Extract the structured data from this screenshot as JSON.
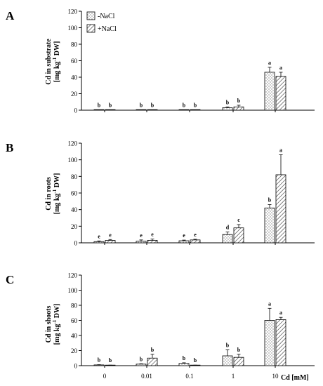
{
  "chart_data": [
    {
      "type": "bar",
      "panel_label": "A",
      "ylabel_line1": "Cd in substrate",
      "ylabel_line2_pre": "[mg kg",
      "ylabel_sup": "-1",
      "ylabel_line2_post": " DW]",
      "ylim": [
        0,
        120
      ],
      "yticks": [
        "0",
        "20",
        "40",
        "60",
        "80",
        "100",
        "120"
      ],
      "categories": [
        "0",
        "0.01",
        "0.1",
        "1",
        "10"
      ],
      "legend": [
        "-NaCl",
        "+NaCl"
      ],
      "legend_position": "top-left",
      "series": [
        {
          "name": "-NaCl",
          "values": [
            0.3,
            0.3,
            0.3,
            3,
            46
          ],
          "errors": [
            0.2,
            0.2,
            0.2,
            1,
            6
          ],
          "letters": [
            "b",
            "b",
            "b",
            "b",
            "a"
          ]
        },
        {
          "name": "+NaCl",
          "values": [
            0.3,
            0.3,
            0.3,
            4,
            41
          ],
          "errors": [
            0.2,
            0.2,
            0.2,
            2,
            5
          ],
          "letters": [
            "b",
            "b",
            "b",
            "b",
            "a"
          ]
        }
      ]
    },
    {
      "type": "bar",
      "panel_label": "B",
      "ylabel_line1": "Cd in roots",
      "ylabel_line2_pre": "[mg kg",
      "ylabel_sup": "-1",
      "ylabel_line2_post": " DW]",
      "ylim": [
        0,
        120
      ],
      "yticks": [
        "0",
        "20",
        "40",
        "60",
        "80",
        "100",
        "120"
      ],
      "categories": [
        "0",
        "0.01",
        "0.1",
        "1",
        "10"
      ],
      "series": [
        {
          "name": "-NaCl",
          "values": [
            1.5,
            2,
            2.5,
            10,
            42
          ],
          "errors": [
            0.8,
            1.5,
            0.8,
            3,
            4
          ],
          "letters": [
            "e",
            "e",
            "e",
            "d",
            "b"
          ]
        },
        {
          "name": "+NaCl",
          "values": [
            3,
            3,
            3.5,
            18,
            82
          ],
          "errors": [
            1,
            1.5,
            0.8,
            4,
            24
          ],
          "letters": [
            "e",
            "e",
            "e",
            "c",
            "a"
          ]
        }
      ]
    },
    {
      "type": "bar",
      "panel_label": "C",
      "ylabel_line1": "Cd in shoots",
      "ylabel_line2_pre": "[mg kg",
      "ylabel_sup": "-1",
      "ylabel_line2_post": " DW]",
      "ylim": [
        0,
        120
      ],
      "yticks": [
        "0",
        "20",
        "40",
        "60",
        "80",
        "100",
        "120"
      ],
      "categories": [
        "0",
        "0.01",
        "0.1",
        "1",
        "10"
      ],
      "xlabel": "Cd [mM]",
      "series": [
        {
          "name": "-NaCl",
          "values": [
            1,
            2,
            3,
            13,
            60
          ],
          "errors": [
            0.3,
            0.5,
            0.8,
            8,
            16
          ],
          "letters": [
            "b",
            "b",
            "b",
            "b",
            "a"
          ]
        },
        {
          "name": "+NaCl",
          "values": [
            0.5,
            10,
            0.5,
            11,
            61
          ],
          "errors": [
            0.2,
            5,
            0.2,
            4,
            3
          ],
          "letters": [
            "b",
            "b",
            "b",
            "b",
            "a"
          ]
        }
      ]
    }
  ]
}
